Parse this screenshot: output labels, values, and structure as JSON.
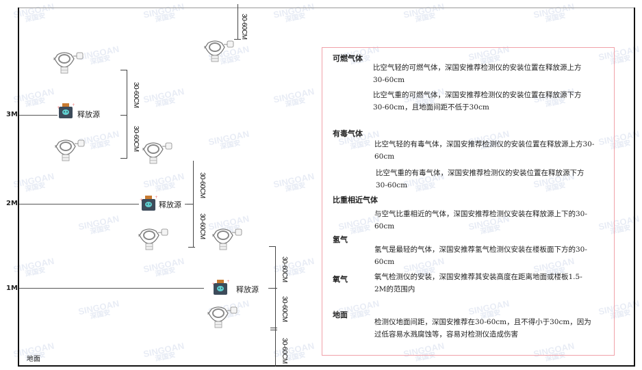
{
  "watermark": {
    "brand": "SINGOAN",
    "cn": "深国安"
  },
  "levels": [
    {
      "label": "3M"
    },
    {
      "label": "2M"
    },
    {
      "label": "1M"
    }
  ],
  "ground_label": "地面",
  "source_label": "释放源",
  "dimension_label": "30-60CM",
  "info": {
    "sections": [
      {
        "title": "可燃气体",
        "paras": [
          "比空气轻的可燃气体，深国安推荐检测仪的安装位置在释放源上方30-60cm",
          "比空气重的可燃气体，深国安推荐检测仪的安装位置在释放源下方30-60cm，且地面间距不低于30cm"
        ]
      },
      {
        "title": "有毒气体",
        "paras": [
          "比空气轻的有毒气体，深国安推荐检测仪的安装位置在释放源上方30-60cm",
          "比空气重的有毒气体，深国安推荐检测仪的安装位置在释放源下方30-60cm"
        ]
      },
      {
        "title": "比重相近气体",
        "paras": [
          "与空气比重相近的气体，深国安推荐检测仪安装在释放源上下的30-60cm"
        ]
      },
      {
        "title": "氢气",
        "paras": [
          "氢气是最轻的气体，深国安推荐氢气检测仪安装在楼板面下方的30-60cm"
        ]
      },
      {
        "title": "氧气",
        "paras": [
          "氧气检测仪的安装，深国安推荐其安装高度在距离地面或楼板1.5-2M的范围内"
        ]
      },
      {
        "title": "地面",
        "paras": [
          "检测仪地面间距，深国安推荐在30-60cm，且不得小于30cm，因为过低容易水溅腐蚀等，容易对检测仪造成伤害"
        ]
      }
    ]
  },
  "colors": {
    "box_border": "#f0a0a8",
    "source_body": "#3d4b5a",
    "source_cap": "#c87a30",
    "source_face": "#5fd0d0"
  }
}
